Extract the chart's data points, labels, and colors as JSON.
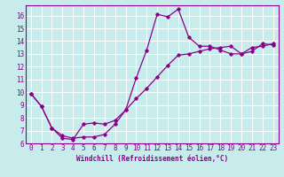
{
  "title": "",
  "xlabel": "Windchill (Refroidissement éolien,°C)",
  "ylabel": "",
  "bg_color": "#c8ecec",
  "grid_color": "#ffffff",
  "line_color": "#8b008b",
  "xlim": [
    -0.5,
    23.5
  ],
  "ylim": [
    6,
    16.8
  ],
  "xticks": [
    0,
    1,
    2,
    3,
    4,
    5,
    6,
    7,
    8,
    9,
    10,
    11,
    12,
    13,
    14,
    15,
    16,
    17,
    18,
    19,
    20,
    21,
    22,
    23
  ],
  "yticks": [
    6,
    7,
    8,
    9,
    10,
    11,
    12,
    13,
    14,
    15,
    16
  ],
  "curve1_x": [
    0,
    1,
    2,
    3,
    4,
    5,
    6,
    7,
    8,
    9,
    10,
    11,
    12,
    13,
    14,
    15,
    16,
    17,
    18,
    19,
    20,
    21,
    22,
    23
  ],
  "curve1_y": [
    9.9,
    8.9,
    7.2,
    6.4,
    6.3,
    7.5,
    7.6,
    7.5,
    7.8,
    8.6,
    11.1,
    13.3,
    16.1,
    15.9,
    16.5,
    14.3,
    13.6,
    13.6,
    13.3,
    13.0,
    13.0,
    13.5,
    13.6,
    13.8
  ],
  "curve2_x": [
    0,
    1,
    2,
    3,
    4,
    5,
    6,
    7,
    8,
    9,
    10,
    11,
    12,
    13,
    14,
    15,
    16,
    17,
    18,
    19,
    20,
    21,
    22,
    23
  ],
  "curve2_y": [
    9.9,
    8.9,
    7.2,
    6.6,
    6.4,
    6.5,
    6.5,
    6.7,
    7.5,
    8.6,
    9.5,
    10.3,
    11.2,
    12.1,
    12.9,
    13.0,
    13.2,
    13.4,
    13.5,
    13.6,
    13.0,
    13.2,
    13.8,
    13.7
  ],
  "tick_fontsize": 5.5,
  "xlabel_fontsize": 5.5,
  "marker_size": 1.8,
  "line_width": 0.9
}
